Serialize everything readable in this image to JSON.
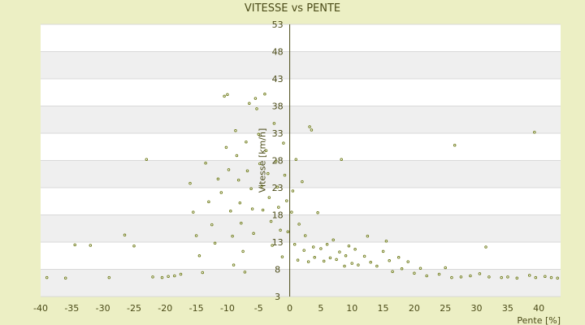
{
  "chart_data": {
    "type": "scatter",
    "title": "VITESSE vs PENTE",
    "xlabel": "Pente [%]",
    "ylabel": "Vitesse [km/h]",
    "xlim": [
      -40,
      43.5
    ],
    "ylim": [
      3,
      53
    ],
    "x_ticks": [
      -40,
      -35,
      -30,
      -25,
      -20,
      -15,
      -10,
      -5,
      0,
      5,
      10,
      15,
      20,
      25,
      30,
      35,
      40
    ],
    "y_ticks": [
      3,
      8,
      13,
      18,
      23,
      28,
      33,
      38,
      43,
      48,
      53
    ],
    "x_tick_labels": [
      "-40",
      "-35",
      "-30",
      "-25",
      "-20",
      "-15",
      "-10",
      "-5",
      "0",
      "5",
      "10",
      "15",
      "20",
      "25",
      "30",
      "35",
      "40"
    ],
    "y_tick_labels": [
      "3",
      "8",
      "13",
      "18",
      "23",
      "28",
      "33",
      "38",
      "43",
      "48",
      "53"
    ],
    "grid": true,
    "legend": "none",
    "marker_color": "#6e7a18",
    "series": [
      {
        "points": [
          [
            -39,
            6.5
          ],
          [
            -36,
            6.4
          ],
          [
            -34.5,
            12.5
          ],
          [
            -32,
            12.4
          ],
          [
            -29,
            6.5
          ],
          [
            -26.5,
            14.3
          ],
          [
            -25,
            12.3
          ],
          [
            -23,
            28.2
          ],
          [
            -22,
            6.6
          ],
          [
            -20.5,
            6.5
          ],
          [
            -19.5,
            6.7
          ],
          [
            -18.5,
            6.8
          ],
          [
            -17.5,
            7.1
          ],
          [
            -16,
            23.8
          ],
          [
            -15.5,
            18.5
          ],
          [
            -15,
            14.2
          ],
          [
            -14.5,
            10.5
          ],
          [
            -14,
            7.4
          ],
          [
            -13.5,
            27.5
          ],
          [
            -13,
            20.4
          ],
          [
            -12.5,
            16.2
          ],
          [
            -12,
            12.8
          ],
          [
            -11.5,
            24.6
          ],
          [
            -11,
            22.1
          ],
          [
            -10.5,
            39.8
          ],
          [
            -10,
            40.1
          ],
          [
            -10.2,
            30.4
          ],
          [
            -9.8,
            26.3
          ],
          [
            -9.5,
            18.7
          ],
          [
            -9.2,
            14.1
          ],
          [
            -9,
            8.8
          ],
          [
            -8.7,
            33.5
          ],
          [
            -8.5,
            28.9
          ],
          [
            -8.2,
            24.4
          ],
          [
            -8,
            20.2
          ],
          [
            -7.8,
            16.5
          ],
          [
            -7.5,
            11.3
          ],
          [
            -7.2,
            7.5
          ],
          [
            -7,
            31.4
          ],
          [
            -6.8,
            26.1
          ],
          [
            -6.5,
            38.5
          ],
          [
            -6.2,
            22.8
          ],
          [
            -6,
            19.1
          ],
          [
            -5.8,
            14.6
          ],
          [
            -5.5,
            39.4
          ],
          [
            -5.3,
            37.5
          ],
          [
            -5,
            32.8
          ],
          [
            -4.8,
            27.4
          ],
          [
            -4.5,
            23.3
          ],
          [
            -4.3,
            18.9
          ],
          [
            -4,
            40.2
          ],
          [
            -3.8,
            29.8
          ],
          [
            -3.5,
            25.6
          ],
          [
            -3.3,
            21.2
          ],
          [
            -3,
            16.8
          ],
          [
            -2.8,
            12.4
          ],
          [
            -2.5,
            34.8
          ],
          [
            -2.2,
            27.9
          ],
          [
            -2,
            23.1
          ],
          [
            -1.8,
            19.4
          ],
          [
            -1.5,
            15.2
          ],
          [
            -1.2,
            10.3
          ],
          [
            -1,
            31.2
          ],
          [
            -0.8,
            25.3
          ],
          [
            -0.5,
            20.6
          ],
          [
            -0.3,
            14.9
          ],
          [
            0.3,
            18.5
          ],
          [
            0.5,
            22.4
          ],
          [
            0.8,
            12.6
          ],
          [
            1,
            28.2
          ],
          [
            1.3,
            9.7
          ],
          [
            1.5,
            16.3
          ],
          [
            2,
            24.1
          ],
          [
            2.3,
            11.5
          ],
          [
            2.5,
            14.2
          ],
          [
            3,
            9.4
          ],
          [
            3.2,
            34.2
          ],
          [
            3.5,
            33.6
          ],
          [
            3.8,
            12.1
          ],
          [
            4,
            10.2
          ],
          [
            4.5,
            18.4
          ],
          [
            5,
            11.8
          ],
          [
            5.5,
            9.5
          ],
          [
            6,
            12.6
          ],
          [
            6.5,
            10.1
          ],
          [
            7,
            13.4
          ],
          [
            7.5,
            9.8
          ],
          [
            8,
            11.2
          ],
          [
            8.3,
            28.2
          ],
          [
            8.8,
            8.6
          ],
          [
            9,
            10.5
          ],
          [
            9.5,
            12.3
          ],
          [
            10,
            9.1
          ],
          [
            10.5,
            11.7
          ],
          [
            11,
            8.8
          ],
          [
            12,
            10.4
          ],
          [
            12.5,
            14.1
          ],
          [
            13,
            9.3
          ],
          [
            14,
            8.6
          ],
          [
            15,
            11.3
          ],
          [
            15.5,
            13.2
          ],
          [
            16,
            9.6
          ],
          [
            16.5,
            7.6
          ],
          [
            17.5,
            10.2
          ],
          [
            18,
            8.1
          ],
          [
            19,
            9.4
          ],
          [
            20,
            7.3
          ],
          [
            21,
            8.2
          ],
          [
            22,
            6.8
          ],
          [
            24,
            7.1
          ],
          [
            25,
            8.3
          ],
          [
            26,
            6.5
          ],
          [
            26.5,
            30.8
          ],
          [
            27.5,
            6.6
          ],
          [
            29,
            6.8
          ],
          [
            30.5,
            7.2
          ],
          [
            31.5,
            12.1
          ],
          [
            32,
            6.6
          ],
          [
            34,
            6.5
          ],
          [
            35,
            6.6
          ],
          [
            36.5,
            6.4
          ],
          [
            38.5,
            6.9
          ],
          [
            39.5,
            6.5
          ],
          [
            39.3,
            33.2
          ],
          [
            41,
            6.7
          ],
          [
            42,
            6.5
          ],
          [
            43,
            6.4
          ]
        ]
      }
    ]
  }
}
